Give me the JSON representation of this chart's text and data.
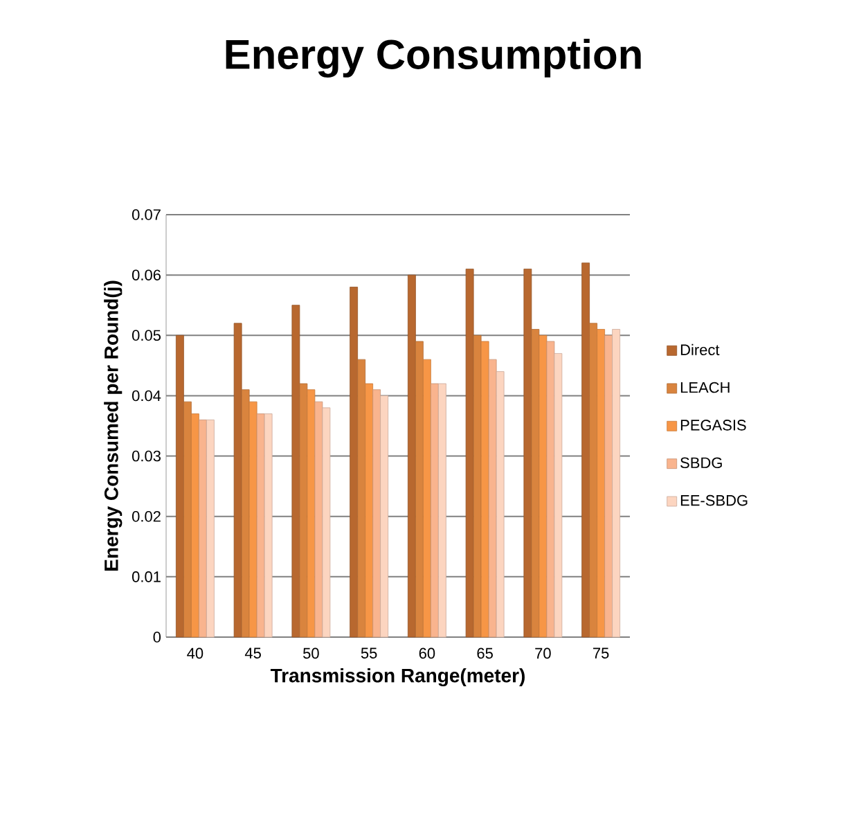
{
  "chart_data": {
    "type": "bar",
    "title": "Energy Consumption",
    "xlabel": "Transmission Range(meter)",
    "ylabel": "Energy Consumed per Round(j)",
    "categories": [
      "40",
      "45",
      "50",
      "55",
      "60",
      "65",
      "70",
      "75"
    ],
    "series": [
      {
        "name": "Direct",
        "color": "#b8682f",
        "values": [
          0.05,
          0.052,
          0.055,
          0.058,
          0.06,
          0.061,
          0.061,
          0.062
        ]
      },
      {
        "name": "LEACH",
        "color": "#d9843e",
        "values": [
          0.039,
          0.041,
          0.042,
          0.046,
          0.049,
          0.05,
          0.051,
          0.052
        ]
      },
      {
        "name": "PEGASIS",
        "color": "#f79646",
        "values": [
          0.037,
          0.039,
          0.041,
          0.042,
          0.046,
          0.049,
          0.05,
          0.051
        ]
      },
      {
        "name": "SBDG",
        "color": "#f9b48e",
        "values": [
          0.036,
          0.037,
          0.039,
          0.041,
          0.042,
          0.046,
          0.049,
          0.05
        ]
      },
      {
        "name": "EE-SBDG",
        "color": "#fcd5c0",
        "values": [
          0.036,
          0.037,
          0.038,
          0.04,
          0.042,
          0.044,
          0.047,
          0.051
        ]
      }
    ],
    "ylim": [
      0,
      0.07
    ],
    "yticks": [
      0,
      0.01,
      0.02,
      0.03,
      0.04,
      0.05,
      0.06,
      0.07
    ],
    "grid": "y",
    "legend": "right"
  }
}
